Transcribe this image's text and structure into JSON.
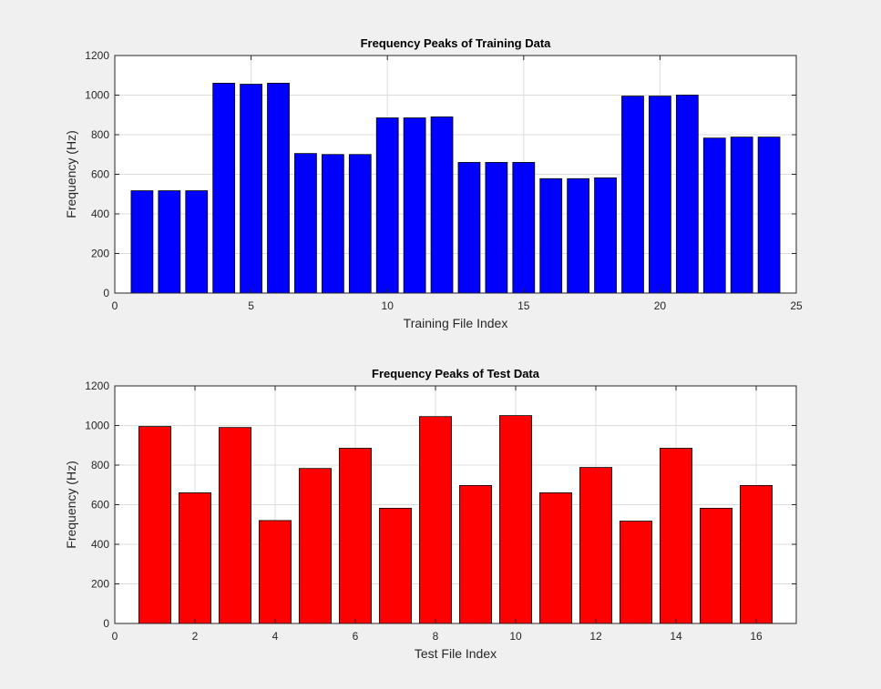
{
  "figure": {
    "background": "#f0f0f0"
  },
  "chart_data": [
    {
      "type": "bar",
      "title": "Frequency Peaks of Training Data",
      "xlabel": "Training File Index",
      "ylabel": "Frequency (Hz)",
      "x": [
        1,
        2,
        3,
        4,
        5,
        6,
        7,
        8,
        9,
        10,
        11,
        12,
        13,
        14,
        15,
        16,
        17,
        18,
        19,
        20,
        21,
        22,
        23,
        24
      ],
      "values": [
        517,
        517,
        517,
        1060,
        1055,
        1060,
        705,
        700,
        700,
        885,
        885,
        890,
        660,
        660,
        660,
        578,
        578,
        582,
        995,
        995,
        1000,
        783,
        788,
        788
      ],
      "xlim": [
        0,
        25
      ],
      "ylim": [
        0,
        1200
      ],
      "xticks": [
        0,
        5,
        10,
        15,
        20,
        25
      ],
      "yticks": [
        0,
        200,
        400,
        600,
        800,
        1000,
        1200
      ],
      "color": "#0000ff",
      "grid": true
    },
    {
      "type": "bar",
      "title": "Frequency Peaks of Test Data",
      "xlabel": "Test File Index",
      "ylabel": "Frequency (Hz)",
      "x": [
        1,
        2,
        3,
        4,
        5,
        6,
        7,
        8,
        9,
        10,
        11,
        12,
        13,
        14,
        15,
        16
      ],
      "values": [
        995,
        660,
        990,
        520,
        783,
        885,
        582,
        1045,
        697,
        1050,
        660,
        788,
        517,
        885,
        582,
        697
      ],
      "xlim": [
        0,
        17
      ],
      "ylim": [
        0,
        1200
      ],
      "xticks": [
        0,
        2,
        4,
        6,
        8,
        10,
        12,
        14,
        16
      ],
      "yticks": [
        0,
        200,
        400,
        600,
        800,
        1000,
        1200
      ],
      "color": "#ff0000",
      "grid": true
    }
  ]
}
